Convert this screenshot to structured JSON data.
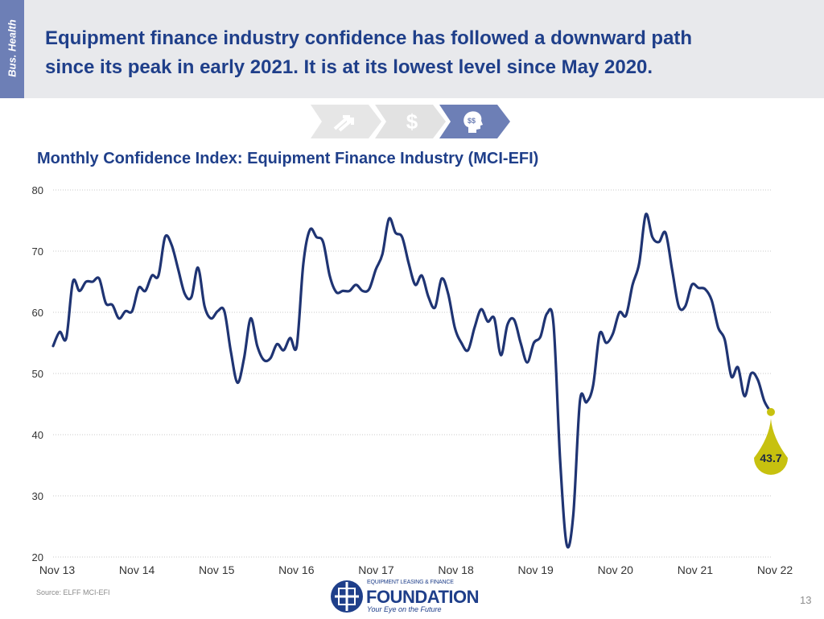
{
  "side_tab": "Bus. Health",
  "headline": {
    "line1": "Equipment finance industry confidence has followed a downward path",
    "line2": "since its peak in early 2021. It is at its lowest level since May 2020."
  },
  "step_icons": [
    "growth-arrows-icon",
    "dollar-icon",
    "head-money-icon"
  ],
  "step_dollar": "$",
  "colors": {
    "line": "#1f3473",
    "accent": "#c7c10f",
    "title": "#1f3f8a",
    "side_tab": "#6d7fb6",
    "header_bg": "#e8e9ec"
  },
  "chart_data": {
    "type": "line",
    "title": "Monthly Confidence Index: Equipment Finance Industry (MCI-EFI)",
    "ylim": [
      20,
      80
    ],
    "yticks": [
      "80",
      "70",
      "60",
      "50",
      "40",
      "30",
      "20"
    ],
    "xticks": [
      "Nov 13",
      "Nov 14",
      "Nov 15",
      "Nov 16",
      "Nov 17",
      "Nov 18",
      "Nov 19",
      "Nov 20",
      "Nov 21",
      "Nov 22"
    ],
    "grid": true,
    "callout": "43.7",
    "series": [
      {
        "values": [
          54.5,
          56.8,
          55.8,
          65.0,
          63.5,
          65.0,
          65.0,
          65.5,
          61.5,
          61.2,
          59.0,
          60.2,
          60.2,
          64.0,
          63.5,
          66.0,
          66.0,
          72.3,
          71.0,
          67.0,
          63.0,
          62.5,
          67.3,
          61.0,
          59.0,
          60.2,
          60.2,
          53.5,
          48.5,
          52.5,
          59.0,
          54.5,
          52.2,
          52.5,
          54.8,
          53.8,
          55.8,
          54.5,
          68.0,
          73.5,
          72.3,
          71.5,
          66.0,
          63.3,
          63.5,
          63.5,
          64.5,
          63.5,
          63.8,
          67.0,
          69.5,
          75.3,
          73.0,
          72.3,
          68.0,
          64.5,
          66.0,
          62.5,
          60.8,
          65.5,
          63.0,
          57.5,
          55.0,
          53.8,
          57.5,
          60.5,
          58.5,
          59.0,
          53.0,
          58.0,
          58.8,
          55.0,
          51.8,
          55.0,
          56.0,
          59.8,
          58.0,
          35.8,
          22.0,
          27.0,
          45.5,
          45.3,
          48.0,
          56.5,
          55.0,
          56.5,
          60.0,
          59.5,
          64.5,
          68.0,
          76.0,
          72.3,
          71.5,
          73.0,
          67.0,
          61.0,
          61.0,
          64.5,
          64.0,
          63.8,
          62.0,
          57.5,
          55.5,
          49.5,
          51.0,
          46.3,
          50.0,
          49.0,
          45.5,
          43.7
        ]
      }
    ]
  },
  "source": "Source:  ELFF MCI-EFI",
  "logo": {
    "small": "EQUIPMENT LEASING & FINANCE",
    "big": "FOUNDATION",
    "tagline": "Your Eye on the Future"
  },
  "page_number": "13"
}
